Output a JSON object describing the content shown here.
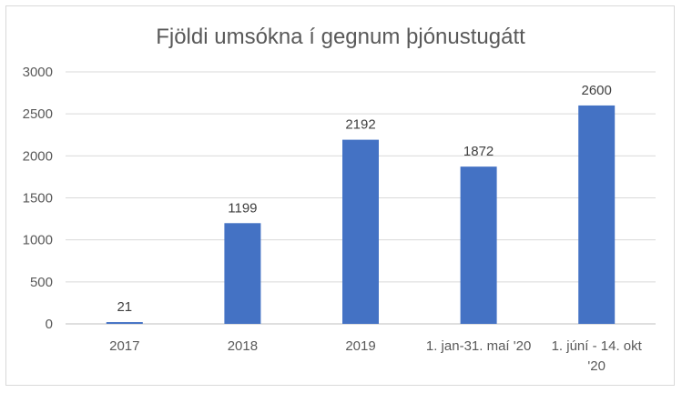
{
  "chart_data": {
    "type": "bar",
    "title": "Fjöldi umsókna í gegnum þjónustugátt",
    "xlabel": "",
    "ylabel": "",
    "categories": [
      [
        "2017"
      ],
      [
        "2018"
      ],
      [
        "2019"
      ],
      [
        "1. jan-31. maí '20"
      ],
      [
        "1. júní - 14. okt",
        "'20"
      ]
    ],
    "values": [
      21,
      1199,
      2192,
      1872,
      2600
    ],
    "data_labels": [
      "21",
      "1199",
      "2192",
      "1872",
      "2600"
    ],
    "ylim": [
      0,
      3000
    ],
    "yticks": [
      "0",
      "500",
      "1000",
      "1500",
      "2000",
      "2500",
      "3000"
    ],
    "ytick_values": [
      0,
      500,
      1000,
      1500,
      2000,
      2500,
      3000
    ],
    "grid": true,
    "legend": "none",
    "colors": {
      "bar": "#4472C4",
      "grid": "#d9d9d9",
      "text": "#595959"
    }
  }
}
